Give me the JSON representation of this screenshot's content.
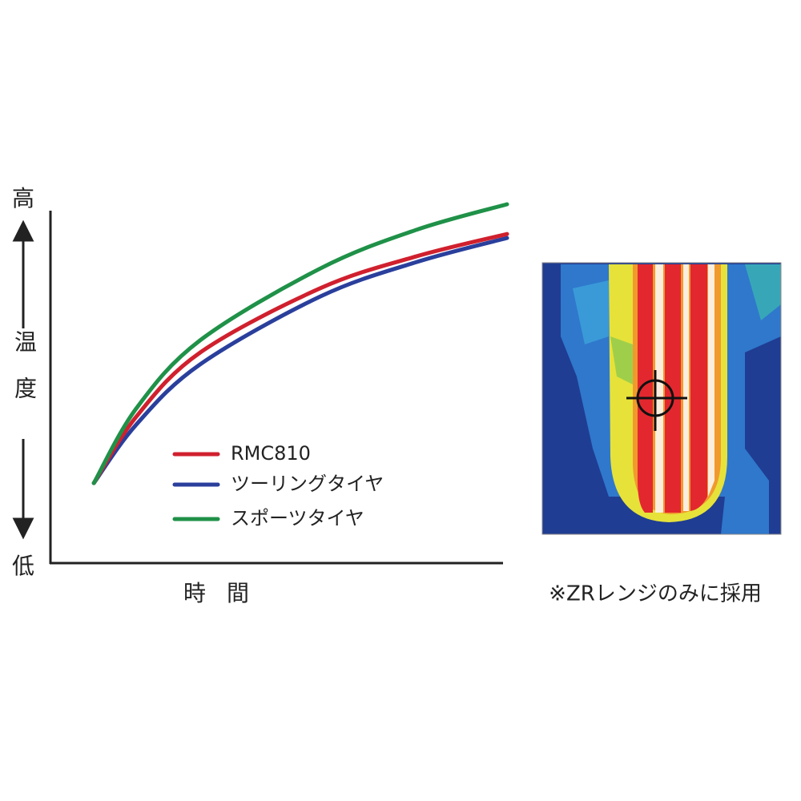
{
  "chart_data": {
    "type": "line",
    "ylabel_high": "高",
    "ylabel": "温度",
    "ylabel_low": "低",
    "xlabel": "時間",
    "x": [
      9.5,
      18.8,
      32.8,
      59.1,
      80.2,
      100
    ],
    "xlim": [
      0,
      100
    ],
    "ylim": [
      0,
      100
    ],
    "series": [
      {
        "name": "RMC810",
        "color": "#d0202e",
        "values": [
          22.3,
          40.8,
          58.7,
          76.6,
          85.5,
          91.7
        ]
      },
      {
        "name": "ツーリングタイヤ",
        "color": "#2a3f9c",
        "values": [
          22.3,
          38.6,
          55.4,
          74.3,
          83.9,
          90.6
        ]
      },
      {
        "name": "スポーツタイヤ",
        "color": "#1f9148",
        "values": [
          22.3,
          43.1,
          62.1,
          82.1,
          92.9,
          100
        ]
      }
    ],
    "image_caption": "※ZRレンジのみに採用"
  }
}
